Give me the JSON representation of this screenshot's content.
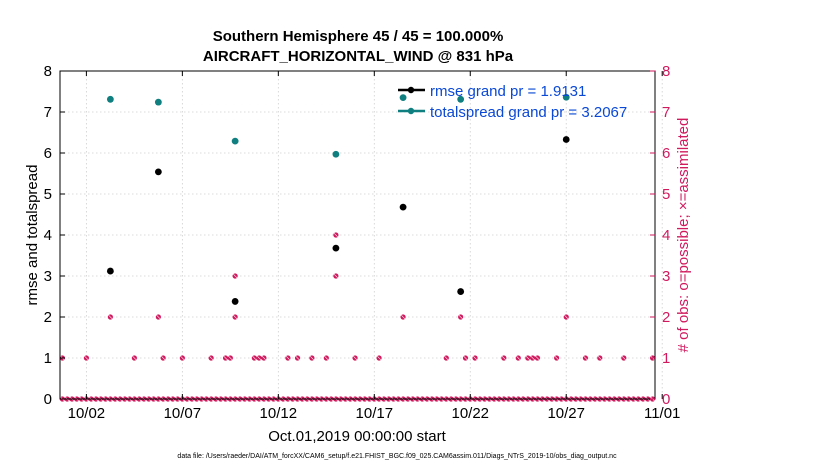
{
  "chart_data": {
    "type": "scatter",
    "title": "Southern Hemisphere 45 / 45 = 100.000%",
    "subtitle": "AIRCRAFT_HORIZONTAL_WIND @ 831 hPa",
    "xlabel": "Oct.01,2019 00:00:00 start",
    "ylabel_left": "rmse and totalspread",
    "ylabel_right": "# of obs: o=possible; ×=assimilated",
    "xlim": [
      0.625,
      31.625
    ],
    "ylim_left": [
      0,
      8
    ],
    "ylim_right": [
      0,
      8
    ],
    "x_tick_values": [
      2,
      7,
      12,
      17,
      22,
      27,
      32
    ],
    "x_tick_labels": [
      "10/02",
      "10/07",
      "10/12",
      "10/17",
      "10/22",
      "10/27",
      "11/01"
    ],
    "y_ticks_left": [
      0,
      1,
      2,
      3,
      4,
      5,
      6,
      7,
      8
    ],
    "y_ticks_right": [
      0,
      1,
      2,
      3,
      4,
      5,
      6,
      7,
      8
    ],
    "grid": true,
    "legend_position": "top-right",
    "colors": {
      "rmse": "#000000",
      "totalspread": "#0f7f7f",
      "obs": "#d11a5e",
      "legend_text": "#0a48d6"
    },
    "series": [
      {
        "name": "rmse grand pr = 1.9131",
        "axis": "left",
        "x": [
          3.25,
          5.75,
          9.75,
          15.0,
          18.5,
          21.5,
          27.0
        ],
        "y": [
          3.12,
          5.54,
          2.38,
          3.68,
          4.68,
          2.62,
          6.33
        ]
      },
      {
        "name": "totalspread grand pr = 3.2067",
        "axis": "left",
        "x": [
          3.25,
          5.75,
          9.75,
          15.0,
          18.5,
          21.5,
          27.0
        ],
        "y": [
          7.31,
          7.24,
          6.29,
          5.97,
          7.35,
          7.31,
          7.36
        ]
      },
      {
        "name": "obs_possible",
        "axis": "right",
        "x": [
          0.75,
          1.0,
          1.25,
          1.5,
          1.75,
          2.0,
          2.25,
          2.5,
          2.75,
          3.0,
          3.25,
          3.5,
          3.75,
          4.0,
          4.25,
          4.5,
          4.75,
          5.0,
          5.25,
          5.5,
          5.75,
          6.0,
          6.25,
          6.5,
          6.75,
          7.0,
          7.25,
          7.5,
          7.75,
          8.0,
          8.25,
          8.5,
          8.75,
          9.0,
          9.25,
          9.5,
          9.75,
          10.0,
          10.25,
          10.5,
          10.75,
          11.0,
          11.25,
          11.5,
          11.75,
          12.0,
          12.25,
          12.5,
          12.75,
          13.0,
          13.25,
          13.5,
          13.75,
          14.0,
          14.25,
          14.5,
          14.75,
          15.0,
          15.25,
          15.5,
          15.75,
          16.0,
          16.25,
          16.5,
          16.75,
          17.0,
          17.25,
          17.5,
          17.75,
          18.0,
          18.25,
          18.5,
          18.75,
          19.0,
          19.25,
          19.5,
          19.75,
          20.0,
          20.25,
          20.5,
          20.75,
          21.0,
          21.25,
          21.5,
          21.75,
          22.0,
          22.25,
          22.5,
          22.75,
          23.0,
          23.25,
          23.5,
          23.75,
          24.0,
          24.25,
          24.5,
          24.75,
          25.0,
          25.25,
          25.5,
          25.75,
          26.0,
          26.25,
          26.5,
          26.75,
          27.0,
          27.25,
          27.5,
          27.75,
          28.0,
          28.25,
          28.5,
          28.75,
          29.0,
          29.25,
          29.5,
          29.75,
          30.0,
          30.25,
          30.5,
          30.75,
          31.0,
          31.25,
          31.5,
          0.75,
          2.0,
          4.5,
          6.0,
          7.0,
          8.5,
          9.25,
          9.5,
          10.75,
          11.0,
          11.25,
          12.5,
          13.0,
          13.75,
          14.5,
          16.0,
          17.25,
          20.75,
          21.75,
          22.25,
          23.75,
          24.5,
          25.0,
          25.25,
          25.5,
          26.5,
          28.0,
          28.75,
          30.0,
          31.5,
          3.25,
          5.75,
          9.75,
          9.75,
          15.0,
          15.0,
          18.5,
          21.5,
          27.0
        ],
        "y": [
          0,
          0,
          0,
          0,
          0,
          0,
          0,
          0,
          0,
          0,
          0,
          0,
          0,
          0,
          0,
          0,
          0,
          0,
          0,
          0,
          0,
          0,
          0,
          0,
          0,
          0,
          0,
          0,
          0,
          0,
          0,
          0,
          0,
          0,
          0,
          0,
          0,
          0,
          0,
          0,
          0,
          0,
          0,
          0,
          0,
          0,
          0,
          0,
          0,
          0,
          0,
          0,
          0,
          0,
          0,
          0,
          0,
          0,
          0,
          0,
          0,
          0,
          0,
          0,
          0,
          0,
          0,
          0,
          0,
          0,
          0,
          0,
          0,
          0,
          0,
          0,
          0,
          0,
          0,
          0,
          0,
          0,
          0,
          0,
          0,
          0,
          0,
          0,
          0,
          0,
          0,
          0,
          0,
          0,
          0,
          0,
          0,
          0,
          0,
          0,
          0,
          0,
          0,
          0,
          0,
          0,
          0,
          0,
          0,
          0,
          0,
          0,
          0,
          0,
          0,
          0,
          0,
          0,
          0,
          0,
          0,
          0,
          0,
          0,
          1,
          1,
          1,
          1,
          1,
          1,
          1,
          1,
          1,
          1,
          1,
          1,
          1,
          1,
          1,
          1,
          1,
          1,
          1,
          1,
          1,
          1,
          1,
          1,
          1,
          1,
          1,
          1,
          1,
          1,
          2,
          2,
          2,
          3,
          3,
          4,
          2,
          2,
          2
        ]
      }
    ]
  },
  "footer": {
    "datafile": "data file: /Users/raeder/DAI/ATM_forcXX/CAM6_setup/f.e21.FHIST_BGC.f09_025.CAM6assim.011/Diags_NTrS_2019-10/obs_diag_output.nc"
  }
}
